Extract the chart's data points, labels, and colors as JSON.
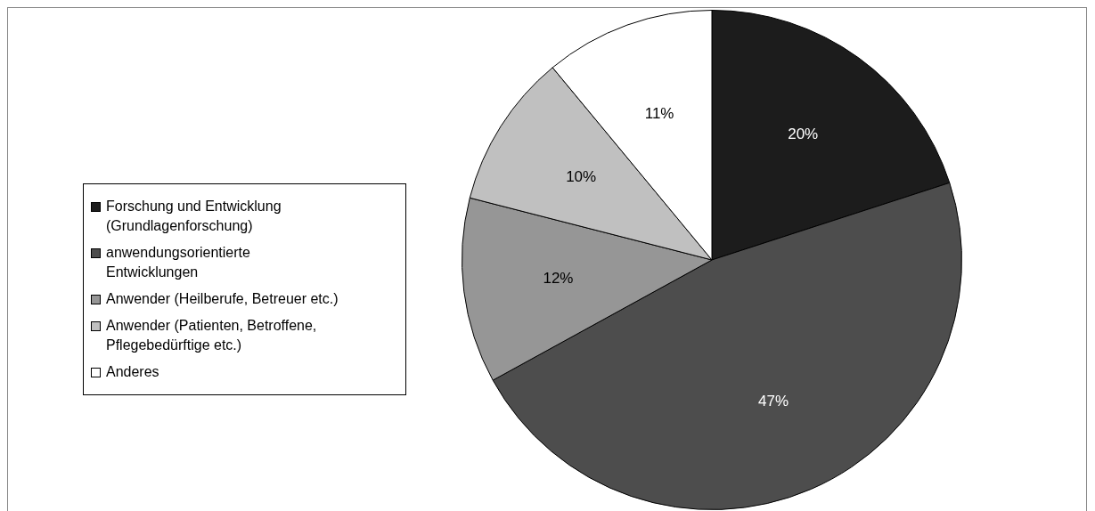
{
  "chart_data": {
    "type": "pie",
    "categories": [
      "Forschung und Entwicklung (Grundlagenforschung)",
      "anwendungsorientierte Entwicklungen",
      "Anwender (Heilberufe, Betreuer etc.)",
      "Anwender (Patienten, Betroffene, Pflegebedürftige etc.)",
      "Anderes"
    ],
    "values": [
      20,
      47,
      12,
      10,
      11
    ],
    "colors": [
      "#1c1c1c",
      "#4d4d4d",
      "#969696",
      "#c0c0c0",
      "#ffffff"
    ],
    "value_labels": [
      "20%",
      "47%",
      "12%",
      "10%",
      "11%"
    ],
    "legend": "left"
  }
}
